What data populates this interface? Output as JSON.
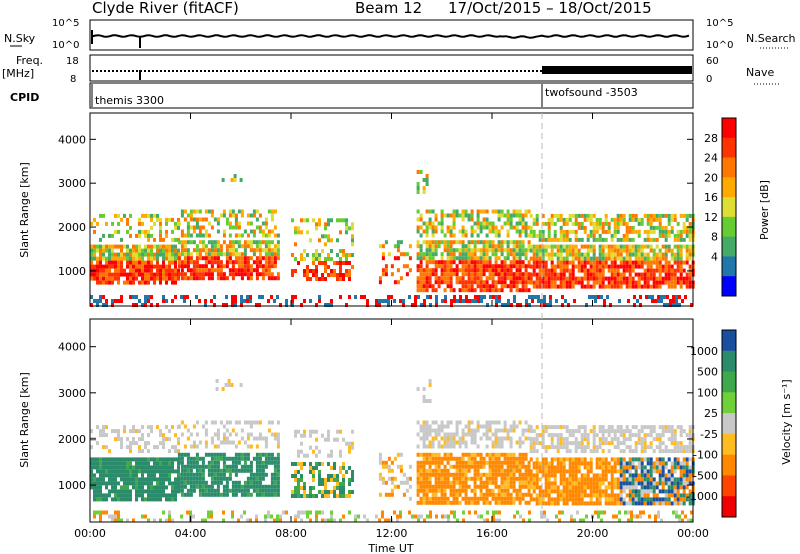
{
  "header": {
    "station": "Clyde River (fitACF)",
    "beam": "Beam 12",
    "dates": "17/Oct/2015 – 18/Oct/2015"
  },
  "strip": {
    "nsky_label": "N.Sky",
    "nsky_ticks": [
      "10^5",
      "10^0"
    ],
    "nsearch_label": "N.Search",
    "freq_label": "Freq.",
    "freq_unit": "[MHz]",
    "freq_ticks": [
      "18",
      "8"
    ],
    "nave_label": "Nave",
    "nave_ticks": [
      "60",
      "0"
    ],
    "cpid_label": "CPID",
    "cpid_modes": [
      {
        "name": "themis 3300",
        "start": "00:00"
      },
      {
        "name": "twofsound -3503",
        "start": "18:00"
      }
    ]
  },
  "chart_data": [
    {
      "type": "heatmap",
      "name": "power",
      "ylabel": "Slant Range [km]",
      "ylim": [
        200,
        4600
      ],
      "yticks": [
        1000,
        2000,
        3000,
        4000
      ],
      "colorbar": {
        "label": "Power [dB]",
        "ticks": [
          "28",
          "24",
          "20",
          "16",
          "12",
          "8",
          "4"
        ],
        "colors": [
          "#ff0000",
          "#ff3300",
          "#ff7700",
          "#ffaa00",
          "#dddd33",
          "#66cc33",
          "#44aa66",
          "#2277aa",
          "#0000ff"
        ]
      },
      "grid": false
    },
    {
      "type": "heatmap",
      "name": "velocity",
      "ylabel": "Slant Range [km]",
      "ylim": [
        200,
        4600
      ],
      "yticks": [
        1000,
        2000,
        3000,
        4000
      ],
      "colorbar": {
        "label": "Velocity [m s⁻¹]",
        "ticks": [
          "1000",
          "500",
          "100",
          "25",
          "-25",
          "-100",
          "-500",
          "-1000"
        ],
        "colors": [
          "#1a4fa0",
          "#2a8c6a",
          "#3fa84d",
          "#6fd13a",
          "#c8c8c8",
          "#ffbb22",
          "#ff8800",
          "#ff4400",
          "#ee0000"
        ]
      },
      "grid": false
    }
  ],
  "xaxis": {
    "label": "Time UT",
    "ticks": [
      "00:00",
      "04:00",
      "08:00",
      "12:00",
      "16:00",
      "20:00",
      "00:00"
    ],
    "range_hours": [
      0,
      24
    ]
  }
}
